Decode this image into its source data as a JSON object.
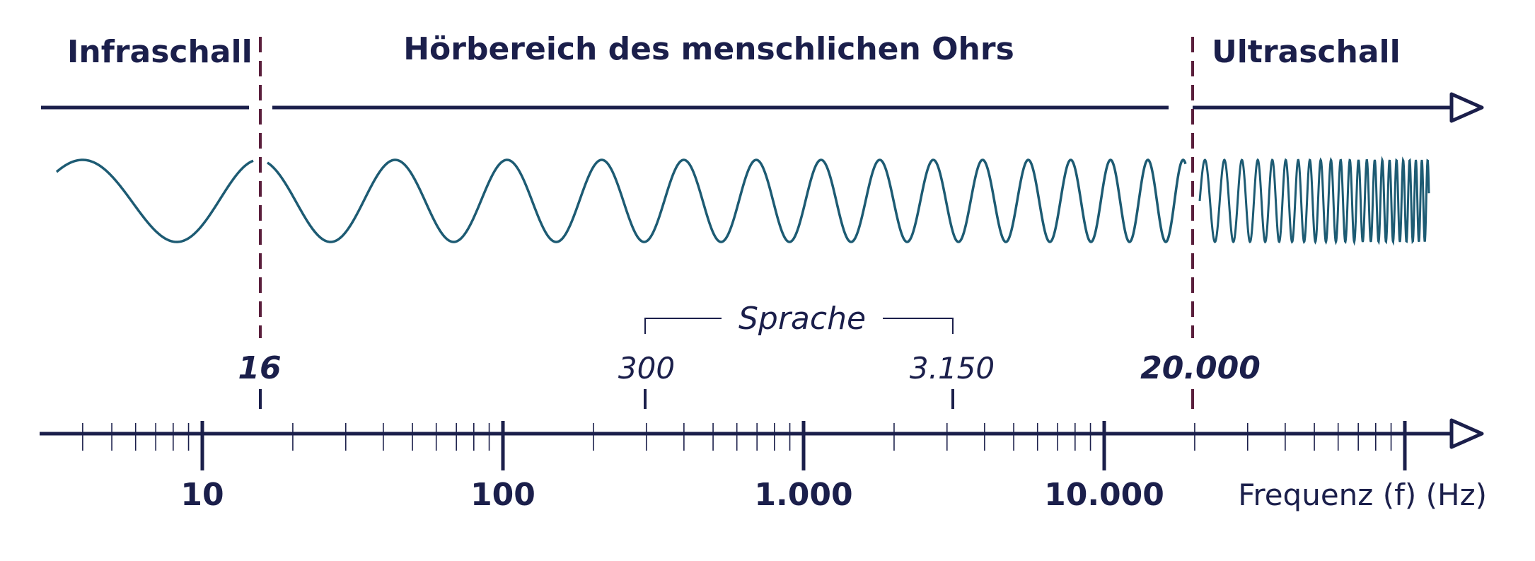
{
  "regions": {
    "infrasound": "Infraschall",
    "audible": "Hörbereich des menschlichen Ohrs",
    "ultrasound": "Ultraschall"
  },
  "boundaries": {
    "lower": {
      "value": 16,
      "label": "16"
    },
    "upper": {
      "value": 20000,
      "label": "20.000"
    }
  },
  "speech": {
    "label": "Sprache",
    "low": {
      "value": 300,
      "label": "300"
    },
    "high": {
      "value": 3150,
      "label": "3.150"
    }
  },
  "axis": {
    "scale": "log",
    "unit_label": "Frequenz (f) (Hz)",
    "decades": [
      {
        "value": 10,
        "label": "10"
      },
      {
        "value": 100,
        "label": "100"
      },
      {
        "value": 1000,
        "label": "1.000"
      },
      {
        "value": 10000,
        "label": "10.000"
      }
    ]
  },
  "colors": {
    "ink": "#1b1f4b",
    "wave": "#1d5b73",
    "boundary": "#5a1f3c"
  }
}
